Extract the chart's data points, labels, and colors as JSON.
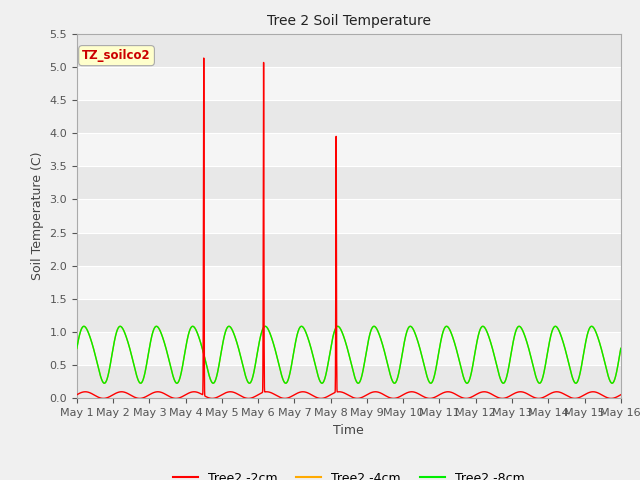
{
  "title": "Tree 2 Soil Temperature",
  "xlabel": "Time",
  "ylabel": "Soil Temperature (C)",
  "ylim": [
    0.0,
    5.5
  ],
  "x_ticks": [
    0,
    1,
    2,
    3,
    4,
    5,
    6,
    7,
    8,
    9,
    10,
    11,
    12,
    13,
    14,
    15
  ],
  "x_tick_labels": [
    "May 1",
    "May 2",
    "May 3",
    "May 4",
    "May 5",
    "May 6",
    "May 7",
    "May 8",
    "May 9",
    "May 10",
    "May 11",
    "May 12",
    "May 13",
    "May 14",
    "May 15",
    "May 16"
  ],
  "yticks": [
    0.0,
    0.5,
    1.0,
    1.5,
    2.0,
    2.5,
    3.0,
    3.5,
    4.0,
    4.5,
    5.0,
    5.5
  ],
  "annotation_label": "TZ_soilco2",
  "annotation_color": "#cc0000",
  "annotation_bg": "#ffffcc",
  "fig_bg": "#f0f0f0",
  "plot_bg": "#f0f0f0",
  "grid_color": "#ffffff",
  "red_color": "#ff0000",
  "orange_color": "#ffaa00",
  "green_color": "#00ee00",
  "legend_labels": [
    "Tree2 -2cm",
    "Tree2 -4cm",
    "Tree2 -8cm"
  ],
  "legend_colors": [
    "#ff0000",
    "#ffaa00",
    "#00ee00"
  ],
  "spike1_x": 3.5,
  "spike1_y": 5.1,
  "spike2_x": 5.15,
  "spike2_y": 5.0,
  "spike3_x": 7.15,
  "spike3_y": 3.9
}
